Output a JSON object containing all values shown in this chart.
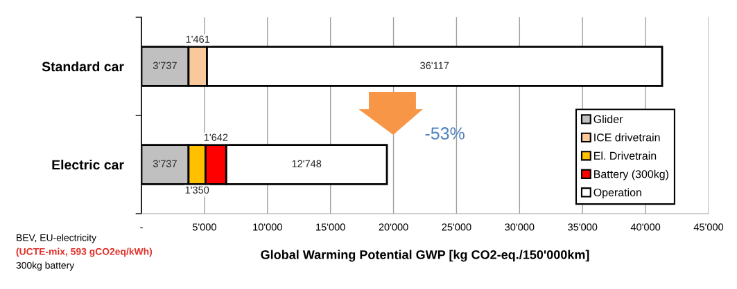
{
  "chart_data": {
    "type": "bar",
    "orientation": "horizontal",
    "stacked": true,
    "categories": [
      "Standard car",
      "Electric car"
    ],
    "series": [
      {
        "name": "Glider",
        "color": "#c0c0c0",
        "values": [
          3737,
          3737
        ],
        "value_labels": [
          "3'737",
          "3'737"
        ]
      },
      {
        "name": "ICE drivetrain",
        "color": "#f9c99b",
        "values": [
          1461,
          null
        ],
        "value_labels": [
          "1'461",
          null
        ]
      },
      {
        "name": "El. Drivetrain",
        "color": "#ffc000",
        "values": [
          null,
          1350
        ],
        "value_labels": [
          null,
          "1'350"
        ]
      },
      {
        "name": "Battery (300kg)",
        "color": "#ff0000",
        "values": [
          null,
          1642
        ],
        "value_labels": [
          null,
          "1'642"
        ]
      },
      {
        "name": "Operation",
        "color": "#ffffff",
        "values": [
          36117,
          12748
        ],
        "value_labels": [
          "36'117",
          "12'748"
        ]
      }
    ],
    "xlim": [
      0,
      45000
    ],
    "xticks": [
      {
        "value": 0,
        "label": "-"
      },
      {
        "value": 5000,
        "label": "5'000"
      },
      {
        "value": 10000,
        "label": "10'000"
      },
      {
        "value": 15000,
        "label": "15'000"
      },
      {
        "value": 20000,
        "label": "20'000"
      },
      {
        "value": 25000,
        "label": "25'000"
      },
      {
        "value": 30000,
        "label": "30'000"
      },
      {
        "value": 35000,
        "label": "35'000"
      },
      {
        "value": 40000,
        "label": "40'000"
      },
      {
        "value": 45000,
        "label": "45'000"
      }
    ],
    "xlabel": "Global Warming Potential GWP [kg CO2-eq./150'000km]",
    "annotations": [
      "-53%",
      "BEV, EU-electricity",
      "(UCTE-mix, 593 gCO2eq/kWh)",
      "300kg battery"
    ],
    "grid": "x",
    "legend": "bottom right"
  }
}
